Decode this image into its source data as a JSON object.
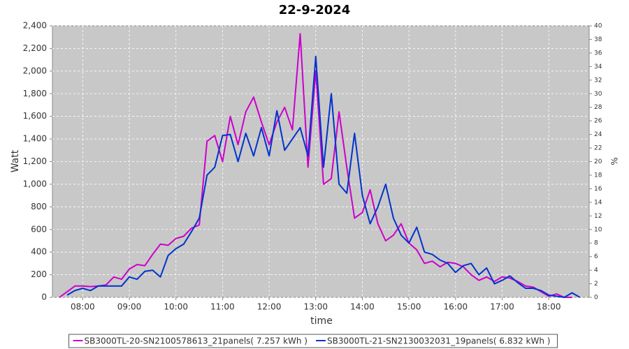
{
  "chart_data": {
    "type": "line",
    "title": "22-9-2024",
    "x_label": "time",
    "y_label": "Watt",
    "y2_label": "%",
    "x": [
      "07:30",
      "07:40",
      "07:50",
      "08:00",
      "08:10",
      "08:20",
      "08:30",
      "08:40",
      "08:50",
      "09:00",
      "09:10",
      "09:20",
      "09:30",
      "09:40",
      "09:50",
      "10:00",
      "10:10",
      "10:20",
      "10:30",
      "10:40",
      "10:50",
      "11:00",
      "11:10",
      "11:20",
      "11:30",
      "11:40",
      "11:50",
      "12:00",
      "12:10",
      "12:20",
      "12:30",
      "12:40",
      "12:50",
      "13:00",
      "13:10",
      "13:20",
      "13:30",
      "13:40",
      "13:50",
      "14:00",
      "14:10",
      "14:20",
      "14:30",
      "14:40",
      "14:50",
      "15:00",
      "15:10",
      "15:20",
      "15:30",
      "15:40",
      "15:50",
      "16:00",
      "16:10",
      "16:20",
      "16:30",
      "16:40",
      "16:50",
      "17:00",
      "17:10",
      "17:20",
      "17:30",
      "17:40",
      "17:50",
      "18:00",
      "18:10",
      "18:20",
      "18:30",
      "18:40"
    ],
    "xlim": [
      "07:21",
      "18:52"
    ],
    "xticks": [
      "08:00",
      "09:00",
      "10:00",
      "11:00",
      "12:00",
      "13:00",
      "14:00",
      "15:00",
      "16:00",
      "17:00",
      "18:00"
    ],
    "ylim": [
      0,
      2400
    ],
    "yticks": [
      0,
      200,
      400,
      600,
      800,
      {
        "value": 1000,
        "label": "1,000"
      },
      {
        "value": 1200,
        "label": "1,200"
      },
      {
        "value": 1400,
        "label": "1,400"
      },
      {
        "value": 1600,
        "label": "1,600"
      },
      {
        "value": 1800,
        "label": "1,800"
      },
      {
        "value": 2000,
        "label": "2,000"
      },
      {
        "value": 2200,
        "label": "2,200"
      },
      {
        "value": 2400,
        "label": "2,400"
      }
    ],
    "y2lim": [
      0,
      40
    ],
    "y2ticks": [
      0,
      2,
      4,
      6,
      8,
      10,
      12,
      14,
      16,
      18,
      20,
      22,
      24,
      26,
      28,
      30,
      32,
      34,
      36,
      38,
      40
    ],
    "grid": true,
    "legend": "bottom",
    "series": [
      {
        "name": "SB3000TL-20-SN2100578613_21panels( 7.257 kWh )",
        "color": "#cc00cc",
        "values": [
          0,
          50,
          100,
          100,
          95,
          100,
          110,
          180,
          160,
          250,
          290,
          280,
          380,
          470,
          460,
          520,
          540,
          610,
          640,
          1380,
          1430,
          1200,
          1600,
          1350,
          1640,
          1770,
          1550,
          1350,
          1550,
          1680,
          1480,
          2330,
          1150,
          2000,
          1000,
          1050,
          1640,
          1150,
          700,
          750,
          950,
          650,
          500,
          550,
          650,
          480,
          420,
          300,
          320,
          270,
          310,
          300,
          270,
          200,
          150,
          180,
          140,
          180,
          170,
          140,
          100,
          90,
          50,
          10,
          30,
          0,
          0,
          null
        ]
      },
      {
        "name": "SB3000TL-21-SN2130032031_19panels( 6.832 kWh )",
        "color": "#0033cc",
        "values": [
          null,
          20,
          60,
          80,
          60,
          100,
          100,
          100,
          100,
          180,
          160,
          230,
          240,
          180,
          370,
          430,
          470,
          580,
          700,
          1080,
          1150,
          1430,
          1440,
          1200,
          1450,
          1250,
          1500,
          1250,
          1650,
          1300,
          1400,
          1500,
          1250,
          2130,
          1150,
          1800,
          1000,
          920,
          1450,
          900,
          650,
          800,
          1000,
          700,
          550,
          480,
          620,
          400,
          380,
          330,
          300,
          220,
          280,
          300,
          200,
          260,
          120,
          150,
          190,
          130,
          80,
          80,
          60,
          20,
          10,
          0,
          40,
          0
        ]
      }
    ]
  }
}
